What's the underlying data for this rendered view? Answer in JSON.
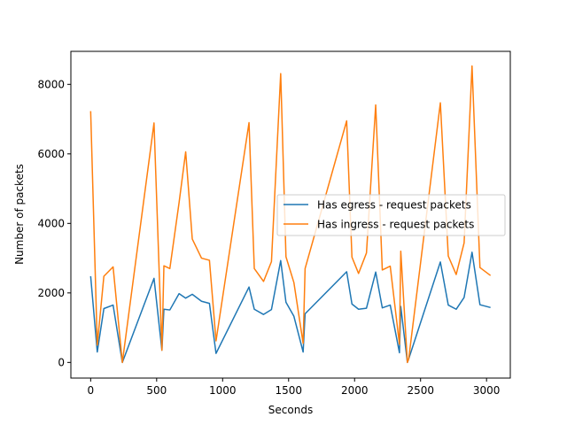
{
  "chart_data": {
    "type": "line",
    "xlabel": "Seconds",
    "ylabel": "Number of packets",
    "xlim": [
      -150,
      3180
    ],
    "ylim": [
      -450,
      8950
    ],
    "xticks": [
      0,
      500,
      1000,
      1500,
      2000,
      2500,
      3000
    ],
    "yticks": [
      0,
      2000,
      4000,
      6000,
      8000
    ],
    "legend_position": "center-right",
    "grid": false,
    "series": [
      {
        "name": "Has egress - request packets",
        "color": "#1f77b4",
        "x": [
          0,
          50,
          100,
          170,
          240,
          480,
          540,
          555,
          600,
          670,
          720,
          770,
          840,
          900,
          950,
          1200,
          1240,
          1310,
          1370,
          1440,
          1480,
          1540,
          1610,
          1625,
          1940,
          1980,
          2030,
          2090,
          2160,
          2210,
          2270,
          2340,
          2350,
          2400,
          2410,
          2650,
          2710,
          2770,
          2830,
          2890,
          2950,
          3030
        ],
        "y": [
          2480,
          300,
          1550,
          1650,
          0,
          2420,
          350,
          1530,
          1510,
          1980,
          1850,
          1960,
          1760,
          1700,
          260,
          2170,
          1530,
          1380,
          1520,
          2930,
          1730,
          1330,
          300,
          1400,
          2610,
          1680,
          1530,
          1560,
          2600,
          1570,
          1650,
          280,
          1610,
          0,
          100,
          2890,
          1650,
          1530,
          1870,
          3170,
          1660,
          1580
        ]
      },
      {
        "name": "Has ingress - request packets",
        "color": "#ff7f0e",
        "x": [
          0,
          50,
          100,
          170,
          240,
          480,
          540,
          555,
          600,
          670,
          720,
          770,
          840,
          900,
          950,
          1200,
          1240,
          1310,
          1370,
          1440,
          1480,
          1540,
          1610,
          1625,
          1940,
          1980,
          2030,
          2090,
          2160,
          2210,
          2270,
          2340,
          2350,
          2400,
          2410,
          2650,
          2710,
          2770,
          2830,
          2890,
          2950,
          3030
        ],
        "y": [
          7230,
          500,
          2480,
          2750,
          0,
          6890,
          350,
          2780,
          2700,
          4600,
          6060,
          3550,
          3000,
          2940,
          620,
          6900,
          2700,
          2330,
          2900,
          8310,
          3040,
          2300,
          550,
          2700,
          6950,
          3030,
          2560,
          3150,
          7410,
          2660,
          2770,
          520,
          3200,
          0,
          100,
          7470,
          3060,
          2530,
          3440,
          8530,
          2730,
          2500
        ]
      }
    ]
  }
}
